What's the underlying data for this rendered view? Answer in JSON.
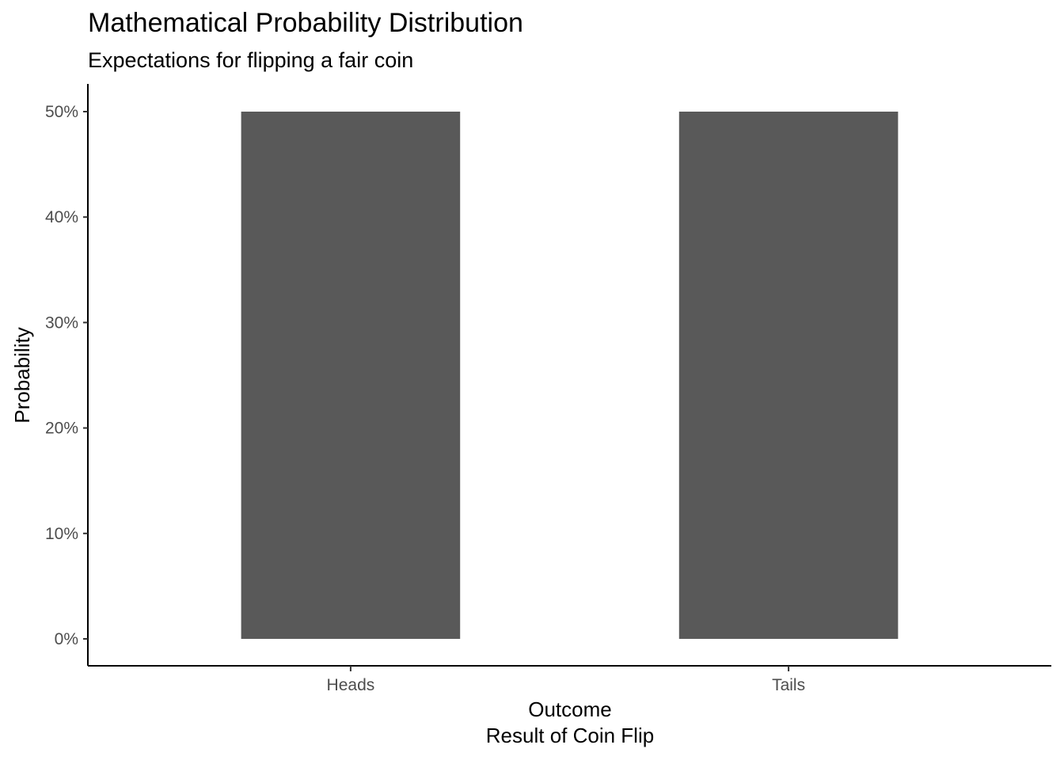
{
  "chart_data": {
    "type": "bar",
    "title": "Mathematical Probability Distribution",
    "subtitle": "Expectations for flipping a fair coin",
    "xlabel": "Outcome",
    "xlabel_line2": "Result of Coin Flip",
    "ylabel": "Probability",
    "categories": [
      "Heads",
      "Tails"
    ],
    "values": [
      0.5,
      0.5
    ],
    "ylim": [
      0,
      0.5
    ],
    "yticks": [
      0,
      0.1,
      0.2,
      0.3,
      0.4,
      0.5
    ],
    "ytick_labels": [
      "0%",
      "10%",
      "20%",
      "30%",
      "40%",
      "50%"
    ],
    "bar_color": "#595959",
    "grid": false,
    "legend": "none"
  }
}
